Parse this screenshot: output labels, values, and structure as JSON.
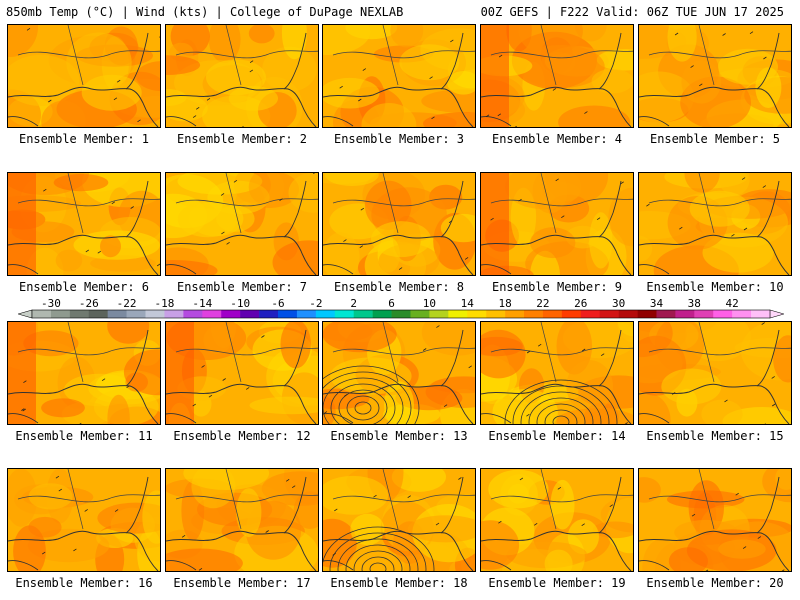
{
  "header": {
    "left": "850mb Temp (°C) | Wind (kts) | College of DuPage NEXLAB",
    "right": "00Z GEFS | F222 Valid: 06Z TUE JUN 17 2025"
  },
  "members": [
    {
      "label": "Ensemble Member: 1"
    },
    {
      "label": "Ensemble Member: 2"
    },
    {
      "label": "Ensemble Member: 3"
    },
    {
      "label": "Ensemble Member: 4"
    },
    {
      "label": "Ensemble Member: 5"
    },
    {
      "label": "Ensemble Member: 6"
    },
    {
      "label": "Ensemble Member: 7"
    },
    {
      "label": "Ensemble Member: 8"
    },
    {
      "label": "Ensemble Member: 9"
    },
    {
      "label": "Ensemble Member: 10"
    },
    {
      "label": "Ensemble Member: 11"
    },
    {
      "label": "Ensemble Member: 12"
    },
    {
      "label": "Ensemble Member: 13"
    },
    {
      "label": "Ensemble Member: 14"
    },
    {
      "label": "Ensemble Member: 15"
    },
    {
      "label": "Ensemble Member: 16"
    },
    {
      "label": "Ensemble Member: 17"
    },
    {
      "label": "Ensemble Member: 18"
    },
    {
      "label": "Ensemble Member: 19"
    },
    {
      "label": "Ensemble Member: 20"
    }
  ],
  "colorbar": {
    "tick_labels": [
      "-30",
      "-26",
      "-22",
      "-18",
      "-14",
      "-10",
      "-6",
      "-2",
      "2",
      "6",
      "10",
      "14",
      "18",
      "22",
      "26",
      "30",
      "34",
      "38",
      "42"
    ],
    "colors": [
      "#b0b8b0",
      "#8f9a8f",
      "#707a70",
      "#5c645c",
      "#7b8aa0",
      "#9aa7ba",
      "#c2c8d8",
      "#c8a0e6",
      "#b44be0",
      "#e040e0",
      "#a000c8",
      "#6000b0",
      "#2020c0",
      "#0050e6",
      "#1e90ff",
      "#00c8ff",
      "#00e6d2",
      "#00c88c",
      "#00a050",
      "#2a8c2a",
      "#68b020",
      "#b4d21e",
      "#f0f000",
      "#ffdc00",
      "#ffc000",
      "#ffa000",
      "#ff8000",
      "#ff6400",
      "#ff3c00",
      "#f01e1e",
      "#d21414",
      "#b40a0a",
      "#900000",
      "#a01850",
      "#c0208c",
      "#e040b4",
      "#ff60e6",
      "#ff90f0",
      "#ffc0f8"
    ]
  }
}
